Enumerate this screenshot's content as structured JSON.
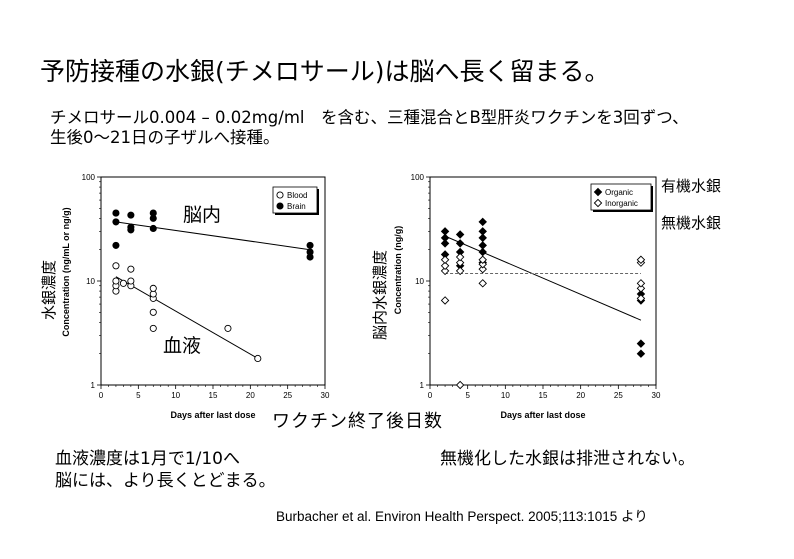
{
  "slide": {
    "title": "予防接種の水銀(チメロサール)は脳へ長く留まる。",
    "desc_line1": "チメロサール0.004 – 0.02mg/ml　を含む、三種混合とB型肝炎ワクチンを3回ずつ、",
    "desc_line2": "生後0〜21日の子ザルへ接種。",
    "x_common_label": "ワクチン終了後日数",
    "note_left_1": "血液濃度は1月で1/10へ",
    "note_left_2": "脳には、より長くとどまる。",
    "note_right": "無機化した水銀は排泄されない。",
    "citation": "Burbacher et al.  Environ Health Perspect. 2005;113:1015 より"
  },
  "chart_data": [
    {
      "type": "scatter",
      "xlabel": "Days after last dose",
      "ylabel": "Concentration (ng/mL or ng/g)",
      "ylabel_jp": "水銀濃度",
      "xlim": [
        0,
        30
      ],
      "ylim": [
        1,
        100
      ],
      "yscale": "log",
      "xticks": [
        "0",
        "5",
        "10",
        "15",
        "20",
        "25",
        "30"
      ],
      "yticks": [
        "1",
        "10",
        "100"
      ],
      "legend_position": "top-right",
      "series": [
        {
          "name": "Blood",
          "annotation": "血液",
          "marker": "open-circle",
          "points": [
            [
              2,
              8
            ],
            [
              2,
              9
            ],
            [
              2,
              10
            ],
            [
              2,
              14
            ],
            [
              3,
              9.5
            ],
            [
              4,
              9
            ],
            [
              4,
              10
            ],
            [
              4,
              13
            ],
            [
              7,
              3.5
            ],
            [
              7,
              5
            ],
            [
              7,
              6.8
            ],
            [
              7,
              7.5
            ],
            [
              7,
              8.5
            ],
            [
              17,
              3.5
            ],
            [
              21,
              1.8
            ]
          ],
          "trend": [
            [
              2,
              11
            ],
            [
              21,
              1.8
            ]
          ]
        },
        {
          "name": "Brain",
          "annotation": "脳内",
          "marker": "filled-circle",
          "points": [
            [
              2,
              22
            ],
            [
              2,
              37
            ],
            [
              2,
              45
            ],
            [
              4,
              31
            ],
            [
              4,
              33
            ],
            [
              4,
              43
            ],
            [
              7,
              32
            ],
            [
              7,
              40
            ],
            [
              7,
              45
            ],
            [
              28,
              17
            ],
            [
              28,
              19
            ],
            [
              28,
              22
            ]
          ],
          "trend": [
            [
              2,
              37
            ],
            [
              28,
              20
            ]
          ]
        }
      ]
    },
    {
      "type": "scatter",
      "xlabel": "Days after last dose",
      "ylabel": "Concentration (ng/g)",
      "ylabel_jp": "脳内水銀濃度",
      "xlim": [
        0,
        30
      ],
      "ylim": [
        1,
        100
      ],
      "yscale": "log",
      "xticks": [
        "0",
        "5",
        "10",
        "15",
        "20",
        "25",
        "30"
      ],
      "yticks": [
        "1",
        "10",
        "100"
      ],
      "legend_position": "top-right",
      "series": [
        {
          "name": "Organic",
          "annotation": "有機水銀",
          "marker": "filled-diamond",
          "points": [
            [
              2,
              18
            ],
            [
              2,
              23
            ],
            [
              2,
              26
            ],
            [
              2,
              30
            ],
            [
              4,
              14
            ],
            [
              4,
              19
            ],
            [
              4,
              23
            ],
            [
              4,
              28
            ],
            [
              7,
              15
            ],
            [
              7,
              19
            ],
            [
              7,
              22
            ],
            [
              7,
              26
            ],
            [
              7,
              30
            ],
            [
              7,
              37
            ],
            [
              28,
              2
            ],
            [
              28,
              2.5
            ],
            [
              28,
              6.5
            ],
            [
              28,
              7.5
            ]
          ],
          "trend": [
            [
              2,
              27
            ],
            [
              28,
              4.2
            ]
          ]
        },
        {
          "name": "Inorganic",
          "annotation": "無機水銀",
          "marker": "open-diamond",
          "points": [
            [
              2,
              6.5
            ],
            [
              2,
              12.5
            ],
            [
              2,
              14
            ],
            [
              2,
              16
            ],
            [
              4,
              1
            ],
            [
              4,
              12.5
            ],
            [
              4,
              15
            ],
            [
              4,
              17
            ],
            [
              7,
              9.5
            ],
            [
              7,
              13
            ],
            [
              7,
              14.5
            ],
            [
              7,
              16
            ],
            [
              28,
              6.8
            ],
            [
              28,
              8.5
            ],
            [
              28,
              9.5
            ],
            [
              28,
              15
            ],
            [
              28,
              16
            ]
          ],
          "trend": [
            [
              2,
              11.8
            ],
            [
              28,
              11.8
            ]
          ],
          "trend_style": "dashed"
        }
      ]
    }
  ]
}
